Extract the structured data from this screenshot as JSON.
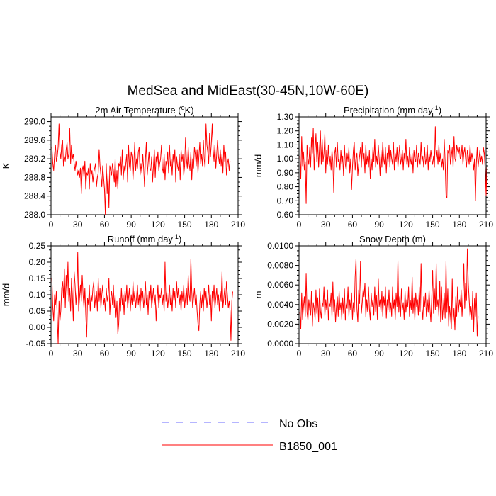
{
  "figure": {
    "title": "MedSea and MidEast(30-45N,10W-60E)"
  },
  "legend": {
    "items": [
      {
        "label": "No Obs",
        "color": "#6b6bff",
        "dashed": true
      },
      {
        "label": "B1850_001",
        "color": "#ff0000",
        "dashed": false
      }
    ]
  },
  "chart_data": [
    {
      "type": "line",
      "title": "2m Air Temperature (",
      "title_unit": "o",
      "title_suffix": "K)",
      "ylabel": "K",
      "xlim": [
        0,
        210
      ],
      "ylim": [
        288.0,
        290.1
      ],
      "xticks": [
        "0",
        "30",
        "60",
        "90",
        "120",
        "150",
        "180",
        "210"
      ],
      "yticks": [
        "288.0",
        "288.4",
        "288.8",
        "289.2",
        "289.6",
        "290.0"
      ],
      "ytick_values": [
        288.0,
        288.4,
        288.8,
        289.2,
        289.6,
        290.0
      ],
      "series": [
        {
          "name": "B1850_001",
          "color": "#ff0000",
          "values": [
            289.45,
            289.1,
            288.95,
            289.3,
            289.5,
            289.15,
            289.25,
            289.45,
            289.95,
            289.35,
            289.2,
            289.5,
            289.6,
            289.05,
            289.25,
            289.15,
            289.4,
            289.55,
            289.2,
            289.3,
            289.85,
            289.1,
            289.5,
            289.2,
            289.3,
            289.1,
            288.95,
            289.15,
            289.0,
            288.85,
            288.95,
            288.8,
            289.0,
            288.45,
            288.95,
            289.05,
            288.8,
            289.15,
            288.55,
            288.9,
            288.85,
            289.0,
            288.55,
            289.1,
            288.85,
            288.95,
            288.7,
            288.9,
            289.0,
            289.1,
            288.6,
            288.8,
            288.9,
            289.4,
            289.05,
            288.85,
            288.6,
            289.05,
            288.8,
            288.55,
            288.0,
            289.1,
            288.45,
            288.9,
            288.15,
            289.05,
            288.95,
            288.85,
            289.1,
            288.95,
            288.7,
            289.2,
            288.6,
            288.95,
            288.55,
            289.1,
            289.05,
            289.25,
            288.85,
            289.4,
            288.75,
            289.05,
            288.9,
            289.1,
            289.3,
            288.7,
            289.5,
            289.05,
            288.95,
            289.35,
            289.25,
            288.75,
            289.1,
            289.55,
            288.95,
            289.2,
            289.0,
            289.35,
            289.45,
            288.85,
            289.1,
            288.9,
            289.3,
            289.0,
            288.6,
            289.2,
            289.55,
            288.85,
            289.1,
            289.35,
            289.0,
            288.95,
            289.25,
            288.7,
            289.05,
            289.4,
            288.8,
            289.25,
            289.1,
            289.35,
            288.95,
            289.1,
            289.2,
            289.5,
            289.0,
            288.9,
            289.3,
            288.75,
            289.15,
            289.05,
            289.35,
            288.9,
            289.5,
            289.05,
            289.2,
            288.85,
            289.3,
            289.1,
            289.4,
            288.7,
            289.25,
            289.05,
            288.95,
            289.3,
            288.75,
            289.4,
            289.15,
            289.3,
            288.85,
            289.05,
            289.65,
            289.2,
            289.0,
            289.45,
            289.1,
            288.95,
            289.35,
            288.75,
            289.2,
            289.0,
            289.45,
            289.3,
            289.05,
            289.4,
            288.9,
            289.25,
            289.55,
            289.1,
            289.3,
            289.05,
            289.6,
            289.2,
            289.0,
            289.95,
            289.5,
            289.35,
            289.1,
            289.75,
            289.25,
            289.55,
            289.95,
            289.4,
            289.15,
            289.5,
            289.0,
            289.3,
            289.6,
            289.25,
            289.1,
            289.4,
            289.05,
            289.3,
            288.9,
            289.5,
            289.15,
            289.35,
            288.85,
            289.1,
            289.2,
            288.95,
            289.15
          ]
        }
      ]
    },
    {
      "type": "line",
      "title": "Precipitation (mm day",
      "title_unit": "-1",
      "title_suffix": ")",
      "ylabel": "mm/d",
      "xlim": [
        0,
        210
      ],
      "ylim": [
        0.6,
        1.3
      ],
      "xticks": [
        "0",
        "30",
        "60",
        "90",
        "120",
        "150",
        "180",
        "210"
      ],
      "yticks": [
        "0.60",
        "0.70",
        "0.80",
        "0.90",
        "1.00",
        "1.10",
        "1.20",
        "1.30"
      ],
      "ytick_values": [
        0.6,
        0.7,
        0.8,
        0.9,
        1.0,
        1.1,
        1.2,
        1.3
      ],
      "series": [
        {
          "name": "B1850_001",
          "color": "#ff0000",
          "values": [
            1.02,
            0.86,
            1.16,
            0.95,
            1.05,
            0.92,
            0.98,
            0.68,
            1.1,
            1.0,
            0.96,
            1.08,
            0.94,
            1.15,
            1.04,
            1.22,
            0.92,
            1.06,
            1.18,
            0.98,
            1.12,
            0.94,
            1.08,
            1.2,
            0.96,
            1.14,
            0.98,
            1.04,
            1.18,
            0.9,
            1.06,
            0.96,
            1.1,
            0.95,
            1.02,
            0.92,
            1.06,
            0.98,
            0.76,
            1.04,
            1.08,
            0.94,
            1.12,
            0.98,
            1.0,
            0.92,
            1.06,
            0.96,
            1.02,
            0.88,
            1.1,
            0.96,
            0.92,
            1.04,
            0.98,
            1.08,
            0.9,
            1.0,
            0.78,
            0.94,
            1.06,
            1.12,
            0.92,
            1.0,
            1.04,
            0.88,
            0.96,
            1.02,
            1.08,
            0.94,
            1.12,
            0.98,
            1.04,
            0.9,
            1.1,
            0.96,
            1.02,
            0.94,
            1.06,
            0.86,
            1.0,
            0.92,
            1.08,
            0.98,
            1.14,
            0.94,
            1.02,
            0.96,
            1.1,
            1.0,
            0.88,
            1.06,
            0.94,
            1.12,
            1.0,
            0.96,
            1.08,
            0.9,
            1.04,
            0.98,
            1.1,
            0.94,
            1.06,
            1.0,
            0.96,
            1.12,
            0.92,
            1.04,
            0.98,
            1.08,
            0.94,
            1.02,
            1.1,
            0.96,
            1.0,
            1.06,
            0.92,
            1.04,
            0.98,
            1.14,
            0.96,
            1.02,
            0.94,
            1.08,
            1.0,
            0.96,
            1.04,
            0.9,
            1.06,
            1.0,
            0.98,
            1.1,
            0.94,
            1.04,
            1.0,
            0.96,
            1.12,
            0.98,
            1.02,
            0.94,
            1.08,
            0.96,
            1.0,
            1.1,
            0.92,
            1.04,
            0.98,
            1.06,
            1.0,
            0.96,
            1.02,
            0.94,
            1.23,
            1.0,
            1.06,
            0.96,
            1.1,
            0.98,
            1.04,
            0.94,
            1.0,
            0.92,
            1.14,
            0.98,
            0.74,
            0.72,
            1.06,
            1.04,
            1.1,
            0.96,
            1.02,
            1.08,
            0.94,
            1.16,
            1.0,
            0.98,
            1.1,
            1.06,
            1.04,
            1.08,
            1.0,
            1.02,
            1.1,
            0.96,
            1.04,
            1.08,
            1.0,
            0.94,
            1.06,
            1.02,
            0.96,
            1.1,
            0.98,
            1.04,
            1.0,
            0.92,
            1.0,
            0.7,
            0.96,
            1.08,
            0.94,
            1.0,
            1.06,
            0.98,
            1.02,
            0.96,
            1.08,
            1.04,
            0.92,
            0.74,
            0.94
          ]
        }
      ]
    },
    {
      "type": "line",
      "title": "Runoff (mm day",
      "title_unit": "-1",
      "title_suffix": ")",
      "ylabel": "mm/d",
      "xlim": [
        0,
        210
      ],
      "ylim": [
        -0.05,
        0.25
      ],
      "xticks": [
        "0",
        "30",
        "60",
        "90",
        "120",
        "150",
        "180",
        "210"
      ],
      "yticks": [
        "-0.05",
        "0.00",
        "0.05",
        "0.10",
        "0.15",
        "0.20",
        "0.25"
      ],
      "ytick_values": [
        -0.05,
        0.0,
        0.05,
        0.1,
        0.15,
        0.2,
        0.25
      ],
      "series": [
        {
          "name": "B1850_001",
          "color": "#ff0000",
          "values": [
            0.15,
            0.06,
            0.02,
            0.1,
            0.07,
            0.11,
            0.03,
            -0.05,
            0.08,
            0.02,
            0.05,
            0.12,
            0.14,
            0.09,
            0.18,
            0.06,
            0.16,
            0.1,
            0.2,
            0.08,
            0.12,
            0.05,
            0.15,
            0.1,
            0.02,
            0.17,
            0.13,
            0.07,
            0.11,
            0.23,
            0.05,
            0.09,
            0.13,
            0.08,
            0.16,
            0.1,
            0.06,
            0.12,
            0.04,
            -0.03,
            0.09,
            0.07,
            0.13,
            0.05,
            0.1,
            0.08,
            0.12,
            0.14,
            0.06,
            0.09,
            0.11,
            0.05,
            0.15,
            0.08,
            0.12,
            0.06,
            0.1,
            0.13,
            0.07,
            0.09,
            0.05,
            0.12,
            0.08,
            0.1,
            0.15,
            0.04,
            0.09,
            0.11,
            0.07,
            0.13,
            0.06,
            0.1,
            0.03,
            0.08,
            -0.02,
            0.01,
            0.09,
            0.05,
            0.12,
            0.07,
            0.1,
            0.04,
            0.11,
            0.08,
            0.13,
            0.06,
            0.09,
            0.12,
            0.05,
            0.1,
            0.07,
            0.14,
            0.08,
            0.11,
            0.06,
            0.09,
            0.13,
            0.07,
            0.1,
            0.05,
            0.12,
            0.08,
            0.11,
            0.06,
            0.09,
            0.14,
            0.07,
            0.1,
            0.04,
            0.11,
            0.08,
            0.13,
            0.06,
            0.09,
            0.12,
            0.07,
            0.1,
            0.02,
            0.08,
            0.13,
            0.06,
            0.1,
            0.09,
            0.12,
            0.07,
            0.1,
            0.05,
            0.2,
            0.08,
            0.11,
            0.06,
            0.09,
            0.13,
            0.07,
            0.1,
            0.05,
            0.12,
            0.08,
            0.11,
            0.06,
            0.14,
            0.09,
            0.12,
            0.07,
            0.1,
            0.05,
            0.11,
            0.08,
            0.13,
            0.06,
            0.09,
            0.12,
            0.07,
            0.16,
            0.1,
            0.08,
            0.21,
            0.11,
            0.06,
            0.09,
            0.12,
            0.07,
            0.1,
            0.05,
            0.01,
            -0.01,
            0.07,
            0.11,
            0.06,
            0.1,
            0.05,
            0.12,
            0.08,
            0.11,
            0.06,
            0.09,
            0.13,
            0.07,
            0.1,
            0.02,
            0.11,
            0.08,
            0.13,
            0.06,
            0.09,
            0.12,
            0.07,
            0.1,
            0.05,
            0.11,
            0.08,
            0.17,
            0.06,
            0.09,
            0.12,
            0.07,
            0.14,
            0.1,
            0.06,
            0.08,
            0.05,
            -0.04,
            0.08,
            0.11
          ]
        }
      ]
    },
    {
      "type": "line",
      "title": "Snow Depth (m)",
      "title_unit": "",
      "title_suffix": "",
      "ylabel": "m",
      "xlim": [
        0,
        210
      ],
      "ylim": [
        0.0,
        0.01
      ],
      "xticks": [
        "0",
        "30",
        "60",
        "90",
        "120",
        "150",
        "180",
        "210"
      ],
      "yticks": [
        "0.0000",
        "0.0020",
        "0.0040",
        "0.0060",
        "0.0080",
        "0.0100"
      ],
      "ytick_values": [
        0.0,
        0.002,
        0.004,
        0.006,
        0.008,
        0.01
      ],
      "series": [
        {
          "name": "B1850_001",
          "color": "#ff0000",
          "values": [
            0.0032,
            0.0015,
            0.0052,
            0.0025,
            0.0038,
            0.0048,
            0.0028,
            0.0072,
            0.0032,
            0.0024,
            0.0045,
            0.0035,
            0.0029,
            0.0054,
            0.0018,
            0.0042,
            0.0036,
            0.0025,
            0.0055,
            0.0031,
            0.0047,
            0.0022,
            0.0056,
            0.0034,
            0.0026,
            0.0042,
            0.0038,
            0.0058,
            0.0028,
            0.0045,
            0.0035,
            0.0055,
            0.0024,
            0.0041,
            0.0038,
            0.0052,
            0.0027,
            0.0063,
            0.0033,
            0.0045,
            0.0022,
            0.0038,
            0.0048,
            0.0028,
            0.0054,
            0.0035,
            0.0042,
            0.0025,
            0.0047,
            0.0031,
            0.0056,
            0.0024,
            0.0041,
            0.0036,
            0.0058,
            0.0028,
            0.0045,
            0.0035,
            0.0052,
            0.0025,
            0.0042,
            0.0032,
            0.0068,
            0.0087,
            0.0036,
            0.0022,
            0.0055,
            0.0041,
            0.0084,
            0.0031,
            0.0042,
            0.0056,
            0.0048,
            0.0062,
            0.0027,
            0.0045,
            0.0033,
            0.0058,
            0.0036,
            0.0024,
            0.0052,
            0.0038,
            0.0045,
            0.0029,
            0.0058,
            0.0033,
            0.0049,
            0.0025,
            0.0066,
            0.0038,
            0.0045,
            0.0032,
            0.0054,
            0.0028,
            0.0048,
            0.0039,
            0.0058,
            0.0026,
            0.0045,
            0.0035,
            0.0055,
            0.0032,
            0.0042,
            0.0028,
            0.0058,
            0.0036,
            0.0045,
            0.0025,
            0.0052,
            0.0038,
            0.0085,
            0.0032,
            0.0048,
            0.0028,
            0.0056,
            0.0035,
            0.0042,
            0.0025,
            0.0054,
            0.0032,
            0.0045,
            0.0038,
            0.0058,
            0.0028,
            0.0044,
            0.0035,
            0.0068,
            0.0031,
            0.0047,
            0.0024,
            0.0052,
            0.0038,
            0.0045,
            0.0029,
            0.0058,
            0.0033,
            0.0082,
            0.0036,
            0.0025,
            0.0048,
            0.0038,
            0.0052,
            0.0028,
            0.0045,
            0.0032,
            0.0055,
            0.0036,
            0.0022,
            0.0048,
            0.0075,
            0.0031,
            0.0056,
            0.0035,
            0.0082,
            0.0038,
            0.0045,
            0.0028,
            0.0064,
            0.0022,
            0.0058,
            0.0025,
            0.0038,
            0.0052,
            0.0026,
            0.0084,
            0.0032,
            0.0056,
            0.0018,
            0.0038,
            0.0028,
            0.0015,
            0.0066,
            0.0022,
            0.0036,
            0.0014,
            0.0048,
            0.0028,
            0.0058,
            0.0032,
            0.0045,
            0.0038,
            0.0055,
            0.0028,
            0.0048,
            0.0082,
            0.0036,
            0.0062,
            0.0044,
            0.0097,
            0.0062,
            0.0045,
            0.0028,
            0.0038,
            0.0025,
            0.0054,
            0.0012,
            0.0046,
            0.0028,
            0.0052,
            0.0008,
            0.0028
          ]
        }
      ]
    }
  ]
}
